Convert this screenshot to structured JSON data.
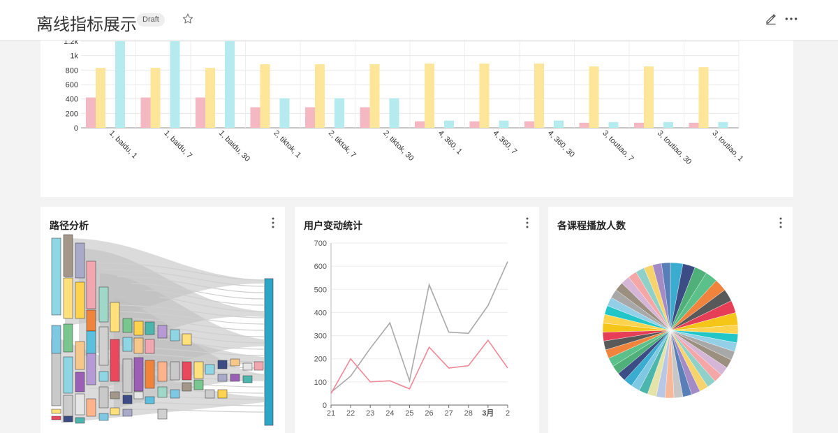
{
  "header": {
    "title": "离线指标展示",
    "badge": "Draft"
  },
  "icons": {
    "star": "star-icon",
    "edit": "pencil-icon",
    "more": "more-horizontal-icon",
    "kebab": "more-vertical-icon"
  },
  "colors": {
    "pink": "#f4b8c2",
    "yellow": "#fde59a",
    "cyan": "#b5ebef",
    "gray_line": "#a9a9a9",
    "red_line": "#f08896",
    "sankey_end": "#2ba6c6"
  },
  "panels": {
    "path": {
      "title": "路径分析"
    },
    "users": {
      "title": "用户变动统计"
    },
    "courses": {
      "title": "各课程播放人数"
    }
  },
  "top_chart": {
    "chart_data": {
      "type": "bar",
      "categories": [
        "1, baidu, 1",
        "1, baidu, 7",
        "1, baidu, 30",
        "2, tiktok, 1",
        "2, tiktok, 7",
        "2, tiktok, 30",
        "4, 360, 1",
        "4, 360, 7",
        "4, 360, 30",
        "3, toutiao, 7",
        "3, toutiao, 30",
        "3, toutiao, 1"
      ],
      "series": [
        {
          "values": [
            420,
            420,
            420,
            285,
            285,
            285,
            90,
            90,
            90,
            70,
            70,
            70
          ]
        },
        {
          "values": [
            830,
            830,
            830,
            880,
            880,
            880,
            890,
            890,
            890,
            850,
            850,
            840
          ]
        },
        {
          "values": [
            1200,
            1200,
            1200,
            410,
            410,
            410,
            100,
            100,
            100,
            80,
            80,
            80
          ]
        }
      ],
      "y_ticks": [
        "0",
        "200",
        "400",
        "600",
        "800",
        "1k",
        "1.2k"
      ],
      "ylim": [
        0,
        1200
      ]
    }
  },
  "line_chart": {
    "chart_data": {
      "type": "line",
      "x": [
        "21",
        "22",
        "23",
        "24",
        "25",
        "26",
        "27",
        "28",
        "3月",
        "2"
      ],
      "series": [
        {
          "values": [
            55,
            125,
            245,
            355,
            105,
            520,
            315,
            310,
            430,
            620
          ]
        },
        {
          "values": [
            50,
            200,
            100,
            105,
            70,
            250,
            160,
            170,
            280,
            160
          ]
        }
      ],
      "y_ticks": [
        "0",
        "100",
        "200",
        "300",
        "400",
        "500",
        "600",
        "700"
      ],
      "ylim": [
        0,
        700
      ]
    }
  },
  "pie_chart": {
    "chart_data": {
      "type": "pie",
      "slices": 44,
      "colors": [
        "#3aaccf",
        "#3c4d86",
        "#4fb07a",
        "#5bc08a",
        "#f0843c",
        "#595959",
        "#e63e56",
        "#f5c518",
        "#ffd34e",
        "#23c6c8",
        "#93d0e8",
        "#a8a8a8",
        "#9b8f80",
        "#d6b6d6",
        "#f5a6a6",
        "#8fd1c8",
        "#f6d36b",
        "#a38bc6",
        "#5a7fb8",
        "#c7c7c7",
        "#f7b89a",
        "#b8c7e6",
        "#e4e4a8",
        "#4db6ac",
        "#7ec8e3"
      ]
    }
  }
}
